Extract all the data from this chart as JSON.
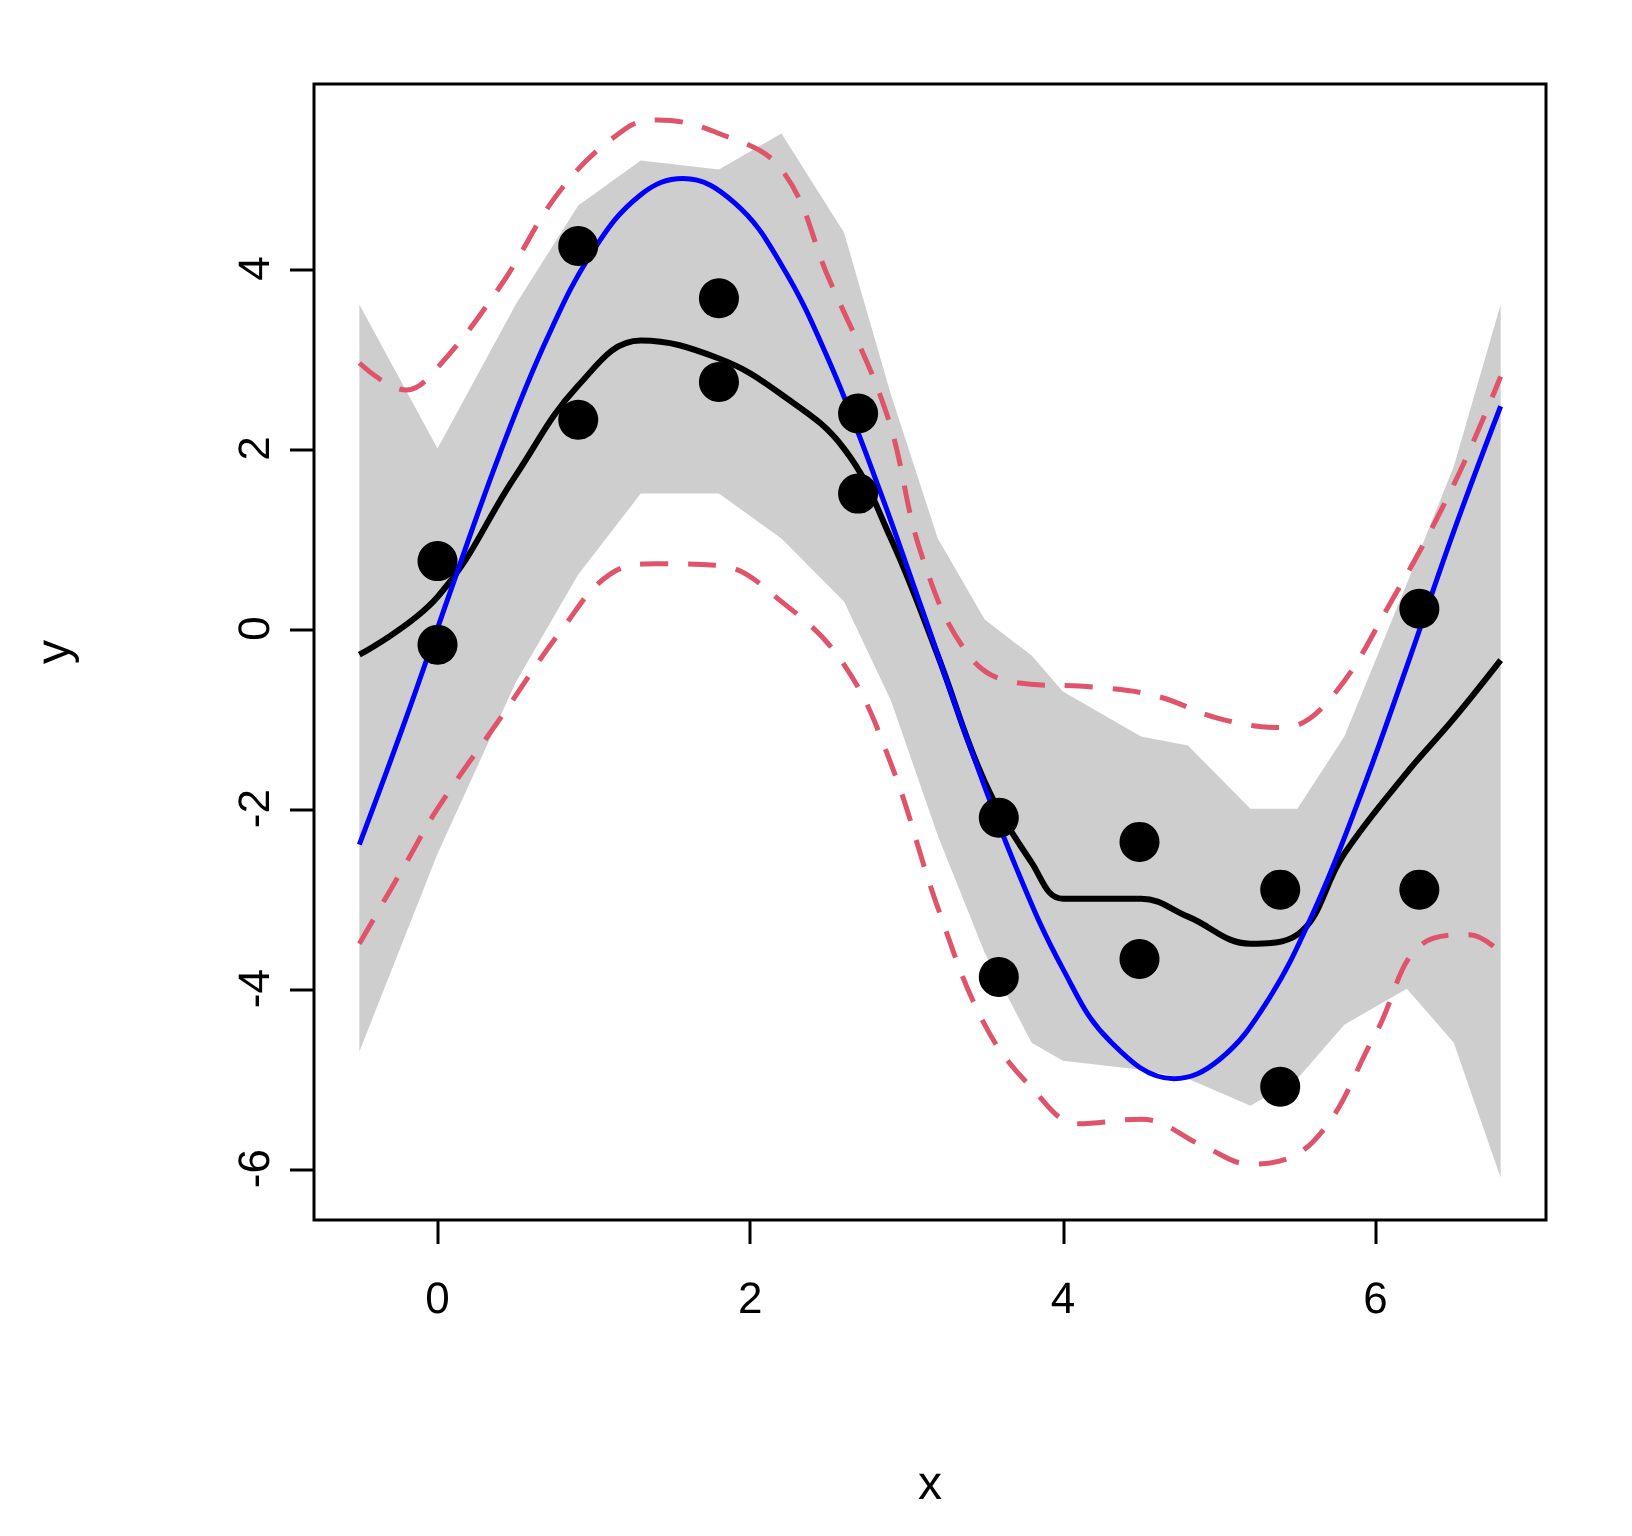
{
  "chart_data": {
    "type": "line",
    "xlabel": "x",
    "ylabel": "y",
    "xlim": [
      -0.79,
      7.09
    ],
    "ylim": [
      -6.57,
      6.05
    ],
    "xticks": [
      0,
      2,
      4,
      6
    ],
    "yticks": [
      -6,
      -4,
      -2,
      0,
      2,
      4
    ],
    "grid": false,
    "series": [
      {
        "color": "#000000",
        "line_style": "solid",
        "marker": "none",
        "x": [
          -0.5,
          0,
          0.5,
          0.9,
          1.3,
          1.8,
          2.2,
          2.6,
          2.9,
          3.2,
          3.5,
          3.8,
          4.0,
          4.5,
          4.8,
          5.2,
          5.5,
          5.8,
          6.2,
          6.5,
          6.8
        ],
        "values": [
          -0.29,
          0.35,
          1.7,
          2.7,
          3.2,
          3.0,
          2.6,
          2.0,
          1.0,
          -0.3,
          -1.7,
          -2.6,
          -3.0,
          -3.0,
          -3.2,
          -3.5,
          -3.4,
          -2.5,
          -1.6,
          -1.0,
          -0.35
        ],
        "lower": [
          -4.7,
          -2.5,
          -0.6,
          0.6,
          1.5,
          1.5,
          1.0,
          0.3,
          -0.8,
          -2.3,
          -3.6,
          -4.6,
          -4.8,
          -4.9,
          -5.0,
          -5.3,
          -5.0,
          -4.4,
          -4.0,
          -4.6,
          -6.1
        ],
        "upper": [
          3.6,
          2.0,
          3.6,
          4.7,
          5.2,
          5.1,
          5.5,
          4.4,
          2.6,
          1.0,
          0.1,
          -0.3,
          -0.7,
          -1.2,
          -1.3,
          -2.0,
          -2.0,
          -1.2,
          0.5,
          1.8,
          3.6
        ]
      },
      {
        "color": "#df536b",
        "line_style": "dashed",
        "marker": "none",
        "x": [
          -0.5,
          -0.2,
          0,
          0.4,
          0.8,
          1.2,
          1.4,
          1.8,
          2.2,
          2.5,
          2.87,
          3.1,
          3.4,
          3.7,
          4.2,
          4.6,
          5.0,
          5.4,
          5.7,
          6.1,
          6.5,
          6.8
        ],
        "values": [
          2.95,
          2.65,
          2.9,
          3.8,
          4.9,
          5.55,
          5.65,
          5.5,
          5.1,
          3.9,
          2.4,
          0.8,
          -0.3,
          -0.6,
          -0.65,
          -0.75,
          -1.0,
          -1.1,
          -0.8,
          0.3,
          1.6,
          2.8
        ]
      },
      {
        "color": "#df536b",
        "line_style": "dashed",
        "marker": "none",
        "x": [
          -0.5,
          -0.2,
          0,
          0.4,
          0.8,
          1.1,
          1.4,
          1.8,
          2.2,
          2.6,
          2.9,
          3.2,
          3.5,
          3.8,
          4.1,
          4.5,
          4.9,
          5.2,
          5.6,
          6.0,
          6.3,
          6.6,
          6.8
        ],
        "values": [
          -3.5,
          -2.6,
          -2.0,
          -1.0,
          0.0,
          0.6,
          0.72,
          0.7,
          0.3,
          -0.4,
          -1.5,
          -3.1,
          -4.4,
          -5.1,
          -5.5,
          -5.45,
          -5.75,
          -5.95,
          -5.7,
          -4.5,
          -3.5,
          -3.4,
          -3.6
        ]
      },
      {
        "color": "#0000ff",
        "line_style": "solid",
        "marker": "none",
        "x": [
          -0.5,
          -0.2,
          0.1,
          0.4,
          0.7,
          1.0,
          1.3,
          1.57,
          1.9,
          2.2,
          2.5,
          2.8,
          3.1,
          3.4,
          3.7,
          4.0,
          4.3,
          4.71,
          5.0,
          5.3,
          5.6,
          5.9,
          6.2,
          6.5,
          6.8
        ],
        "values": [
          -2.4,
          -0.99,
          0.5,
          1.95,
          3.22,
          4.21,
          4.82,
          5.0,
          4.73,
          4.04,
          2.99,
          1.67,
          0.21,
          -1.28,
          -2.65,
          -3.78,
          -4.58,
          -5.0,
          -4.79,
          -4.16,
          -3.16,
          -1.87,
          -0.42,
          1.08,
          2.47
        ]
      },
      {
        "type": "scatter",
        "color": "#000000",
        "marker": "circle",
        "x": [
          0,
          0,
          0.9,
          0.9,
          1.8,
          1.8,
          2.69,
          2.69,
          3.59,
          3.59,
          4.49,
          4.49,
          5.39,
          5.39,
          6.28,
          6.28
        ],
        "values": [
          0.75,
          -0.18,
          4.25,
          2.32,
          3.67,
          2.74,
          2.39,
          1.5,
          -2.1,
          -3.87,
          -2.37,
          -3.67,
          -2.9,
          -5.09,
          0.22,
          -2.9
        ]
      }
    ]
  }
}
